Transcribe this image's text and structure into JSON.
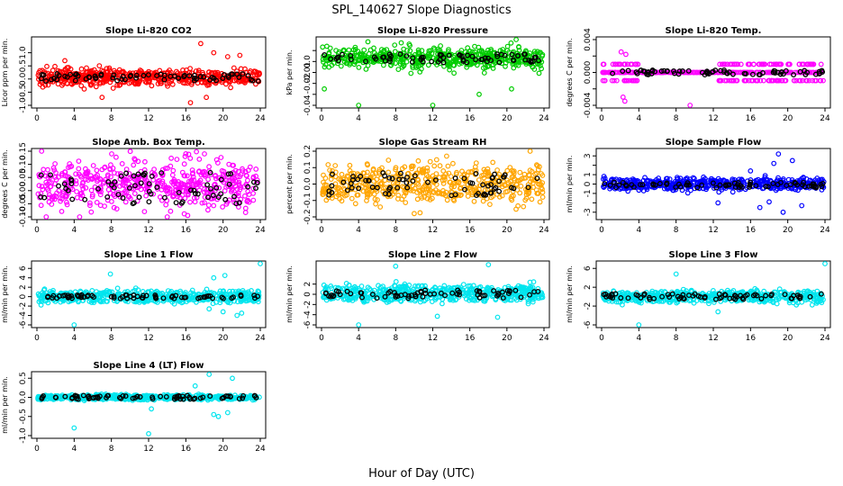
{
  "figure": {
    "title": "SPL_140627  Slope Diagnostics",
    "xlabel": "Hour of Day (UTC)"
  },
  "chart_data": [
    {
      "type": "scatter",
      "title": "Slope Li-820 CO2",
      "ylabel": "Licor ppm per min.",
      "color": "#ff0000",
      "xlim": [
        0,
        24
      ],
      "ylim": [
        -1.0,
        1.5
      ],
      "xticks": [
        0,
        4,
        8,
        12,
        16,
        20,
        24
      ],
      "yticks": [
        -1.0,
        -0.5,
        0.0,
        0.5,
        1.0
      ],
      "ytick_labels": [
        "-1.0",
        "-0.5",
        "0.0",
        "0.5",
        "1.0"
      ],
      "band": [
        -0.15,
        0.3
      ],
      "spread": 0.35,
      "outliers": [
        [
          17.6,
          1.35
        ],
        [
          19.0,
          1.0
        ],
        [
          20.5,
          0.85
        ],
        [
          16.5,
          -0.9
        ],
        [
          7.0,
          -0.7
        ],
        [
          21.8,
          0.9
        ],
        [
          3.0,
          0.7
        ],
        [
          18.2,
          -0.7
        ]
      ],
      "black_series": {
        "name": "hourly",
        "center": 0.05,
        "spread": 0.15
      }
    },
    {
      "type": "scatter",
      "title": "Slope Li-820 Pressure",
      "ylabel": "kPa per min.",
      "color": "#00cc00",
      "xlim": [
        0,
        24
      ],
      "ylim": [
        -0.04,
        0.02
      ],
      "xticks": [
        0,
        4,
        8,
        12,
        16,
        20,
        24
      ],
      "yticks": [
        -0.04,
        -0.03,
        -0.02,
        -0.01,
        0.0,
        0.01
      ],
      "ytick_labels": [
        "-0.04",
        "",
        "-0.02",
        "-0.01",
        "0.0",
        ""
      ],
      "band": [
        -0.002,
        0.008
      ],
      "spread": 0.012,
      "outliers": [
        [
          0.3,
          -0.025
        ],
        [
          4.0,
          -0.04
        ],
        [
          12.0,
          -0.04
        ],
        [
          17.0,
          -0.03
        ],
        [
          20.5,
          -0.025
        ],
        [
          21.0,
          0.02
        ],
        [
          5.0,
          0.018
        ],
        [
          8.6,
          0.017
        ]
      ],
      "black_series": {
        "name": "hourly",
        "center": 0.003,
        "spread": 0.004
      }
    },
    {
      "type": "scatter",
      "title": "Slope Li-820 Temp.",
      "ylabel": "degrees C per min.",
      "color": "#ff00ff",
      "xlim": [
        0,
        24
      ],
      "ylim": [
        -0.004,
        0.004
      ],
      "xticks": [
        0,
        4,
        8,
        12,
        16,
        20,
        24
      ],
      "yticks": [
        -0.004,
        -0.002,
        0.0,
        0.002,
        0.004
      ],
      "ytick_labels": [
        "-0.004",
        "",
        "0.000",
        "",
        "0.004"
      ],
      "band": [
        -0.001,
        0.001
      ],
      "spread": 0.001,
      "outliers": [
        [
          2.1,
          0.0025
        ],
        [
          2.5,
          -0.0035
        ],
        [
          2.3,
          -0.003
        ],
        [
          9.5,
          -0.004
        ],
        [
          2.6,
          0.0022
        ]
      ],
      "black_series": {
        "name": "hourly",
        "center": 0.0,
        "spread": 0.0003
      },
      "quantized": [
        -0.001,
        0.0,
        0.001
      ]
    },
    {
      "type": "scatter",
      "title": "Slope Amb. Box Temp.",
      "ylabel": "degrees C per min.",
      "color": "#ff00ff",
      "xlim": [
        0,
        24
      ],
      "ylim": [
        -0.1,
        0.15
      ],
      "xticks": [
        0,
        4,
        8,
        12,
        16,
        20,
        24
      ],
      "yticks": [
        -0.1,
        -0.05,
        0.0,
        0.05,
        0.1,
        0.15
      ],
      "ytick_labels": [
        "-0.10",
        "-0.05",
        "0.00",
        "0.05",
        "0.10",
        "0.15"
      ],
      "band": [
        -0.03,
        0.07
      ],
      "spread": 0.12,
      "outliers": [
        [
          1.0,
          -0.1
        ],
        [
          14.0,
          -0.1
        ],
        [
          16.0,
          0.14
        ],
        [
          0.5,
          0.15
        ]
      ],
      "black_series": {
        "name": "hourly",
        "center": 0.01,
        "spread": 0.06
      }
    },
    {
      "type": "scatter",
      "title": "Slope Gas Stream RH",
      "ylabel": "percent per min.",
      "color": "#ffa500",
      "xlim": [
        0,
        24
      ],
      "ylim": [
        -0.2,
        0.2
      ],
      "xticks": [
        0,
        4,
        8,
        12,
        16,
        20,
        24
      ],
      "yticks": [
        -0.2,
        -0.1,
        0.0,
        0.1,
        0.2
      ],
      "ytick_labels": [
        "-0.2",
        "-0.1",
        "0.0",
        "0.1",
        "0.2"
      ],
      "band": [
        -0.08,
        0.08
      ],
      "spread": 0.13,
      "outliers": [
        [
          10.0,
          -0.18
        ],
        [
          22.5,
          0.2
        ],
        [
          13.5,
          0.17
        ]
      ],
      "black_series": {
        "name": "hourly",
        "center": 0.0,
        "spread": 0.07
      }
    },
    {
      "type": "scatter",
      "title": "Slope Sample Flow",
      "ylabel": "ml/min per min.",
      "color": "#0000ff",
      "xlim": [
        0,
        24
      ],
      "ylim": [
        -3.5,
        3.5
      ],
      "xticks": [
        0,
        4,
        8,
        12,
        16,
        20,
        24
      ],
      "yticks": [
        -3,
        -2,
        -1,
        0,
        1,
        2,
        3
      ],
      "ytick_labels": [
        "-3",
        "",
        "-1",
        "0",
        "1",
        "",
        "3"
      ],
      "band": [
        -0.5,
        0.5
      ],
      "spread": 0.6,
      "outliers": [
        [
          19.0,
          3.2
        ],
        [
          18.5,
          2.2
        ],
        [
          20.5,
          2.5
        ],
        [
          19.5,
          -3.0
        ],
        [
          17.0,
          -2.5
        ],
        [
          21.5,
          -2.3
        ],
        [
          12.5,
          -2.0
        ],
        [
          16.0,
          1.4
        ],
        [
          18.0,
          -1.9
        ]
      ],
      "black_series": {
        "name": "hourly",
        "center": -0.1,
        "spread": 0.3
      }
    },
    {
      "type": "scatter",
      "title": "Slope Line 1 Flow",
      "ylabel": "ml/min per min.",
      "color": "#00e5ee",
      "xlim": [
        0,
        24
      ],
      "ylim": [
        -6,
        7
      ],
      "xticks": [
        0,
        4,
        8,
        12,
        16,
        20,
        24
      ],
      "yticks": [
        -6,
        -4,
        -2,
        0,
        2,
        4,
        6
      ],
      "ytick_labels": [
        "-6",
        "-4",
        "-2",
        "0",
        "2",
        "4",
        "6"
      ],
      "band": [
        -1,
        1
      ],
      "spread": 1.2,
      "outliers": [
        [
          7.9,
          4.8
        ],
        [
          4.0,
          -6.0
        ],
        [
          19.0,
          4.0
        ],
        [
          20.2,
          4.5
        ],
        [
          21.5,
          -4.0
        ],
        [
          24.0,
          7.0
        ],
        [
          20.0,
          -3.2
        ],
        [
          18.5,
          -2.6
        ],
        [
          22.0,
          -3.5
        ]
      ],
      "black_series": {
        "name": "hourly",
        "center": 0.0,
        "spread": 0.4
      }
    },
    {
      "type": "scatter",
      "title": "Slope Line 2 Flow",
      "ylabel": "ml/min per min.",
      "color": "#00e5ee",
      "xlim": [
        0,
        24
      ],
      "ylim": [
        -6,
        6
      ],
      "xticks": [
        0,
        4,
        8,
        12,
        16,
        20,
        24
      ],
      "yticks": [
        -6,
        -4,
        -2,
        0,
        2
      ],
      "ytick_labels": [
        "-6",
        "-4",
        "-2",
        "0",
        "2"
      ],
      "band": [
        -1.2,
        1.5
      ],
      "spread": 1.5,
      "outliers": [
        [
          8.0,
          5.5
        ],
        [
          4.0,
          -6.0
        ],
        [
          18.0,
          5.8
        ],
        [
          19.0,
          -4.5
        ],
        [
          12.5,
          -4.3
        ]
      ],
      "black_series": {
        "name": "hourly",
        "center": 0.0,
        "spread": 0.8
      }
    },
    {
      "type": "scatter",
      "title": "Slope Line 3 Flow",
      "ylabel": "ml/min per min.",
      "color": "#00e5ee",
      "xlim": [
        0,
        24
      ],
      "ylim": [
        -6,
        7
      ],
      "xticks": [
        0,
        4,
        8,
        12,
        16,
        20,
        24
      ],
      "yticks": [
        -6,
        -2,
        2,
        6
      ],
      "ytick_labels": [
        "-6",
        "-2",
        "2",
        "6"
      ],
      "band": [
        -1,
        1
      ],
      "spread": 1.2,
      "outliers": [
        [
          8.0,
          4.8
        ],
        [
          4.0,
          -6.0
        ],
        [
          24.0,
          7.5
        ],
        [
          12.5,
          -3.2
        ]
      ],
      "black_series": {
        "name": "hourly",
        "center": 0.0,
        "spread": 0.6
      }
    },
    {
      "type": "scatter",
      "title": "Slope Line 4 (LT) Flow",
      "ylabel": "ml/min per min.",
      "color": "#00e5ee",
      "xlim": [
        0,
        24
      ],
      "ylim": [
        -1.0,
        0.6
      ],
      "xticks": [
        0,
        4,
        8,
        12,
        16,
        20,
        24
      ],
      "yticks": [
        -1.0,
        -0.5,
        0.0,
        0.5
      ],
      "ytick_labels": [
        "-1.0",
        "-0.5",
        "0.0",
        "0.5"
      ],
      "band": [
        -0.05,
        0.05
      ],
      "spread": 0.06,
      "outliers": [
        [
          4.0,
          -0.8
        ],
        [
          12.0,
          -0.95
        ],
        [
          18.5,
          0.6
        ],
        [
          19.0,
          -0.45
        ],
        [
          19.5,
          -0.5
        ],
        [
          20.5,
          -0.4
        ],
        [
          17.0,
          0.3
        ],
        [
          21.0,
          0.5
        ],
        [
          12.3,
          -0.3
        ]
      ],
      "black_series": {
        "name": "hourly",
        "center": 0.0,
        "spread": 0.05
      }
    }
  ]
}
